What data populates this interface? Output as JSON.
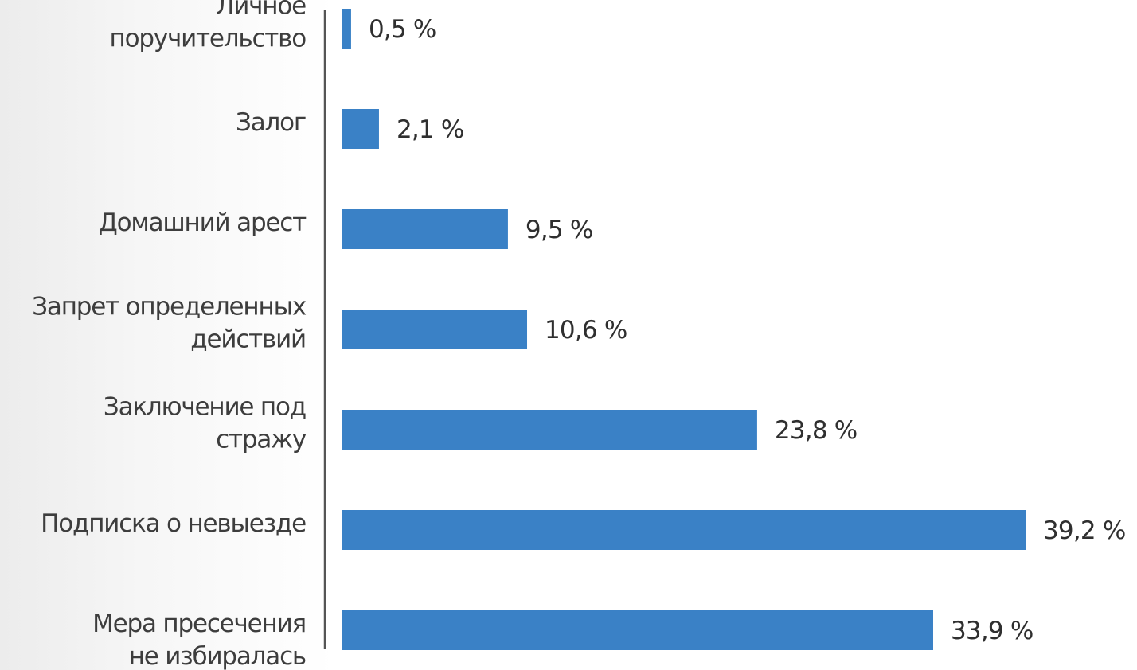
{
  "chart_data": {
    "type": "bar",
    "orientation": "horizontal",
    "categories": [
      [
        "Личное",
        "поручительство"
      ],
      [
        "Залог"
      ],
      [
        "Домашний арест"
      ],
      [
        "Запрет определенных",
        "действий"
      ],
      [
        "Заключение под",
        "стражу"
      ],
      [
        "Подписка о невыезде"
      ],
      [
        "Мера пресечения",
        "не избиралась"
      ]
    ],
    "values": [
      0.5,
      2.1,
      9.5,
      10.6,
      23.8,
      39.2,
      33.9
    ],
    "value_labels": [
      "0,5 %",
      "2,1 %",
      "9,5 %",
      "10,6 %",
      "23,8 %",
      "39,2 %",
      "33,9 %"
    ],
    "unit": "%",
    "xlim": [
      0,
      39.2
    ],
    "bar_color": "#3a81c6",
    "axis_color": "#555555",
    "grid": false,
    "legend": "none",
    "title": "",
    "xlabel": "",
    "ylabel": ""
  }
}
